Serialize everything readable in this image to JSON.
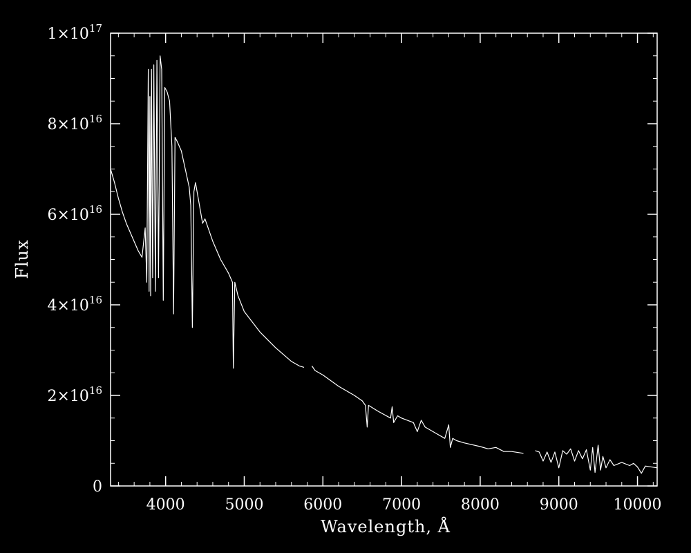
{
  "chart_data": {
    "type": "line",
    "title": "",
    "xlabel": "Wavelength, Å",
    "ylabel": "Flux",
    "xlim": [
      3300,
      10250
    ],
    "ylim": [
      0,
      1e+17
    ],
    "grid": false,
    "legend": "none",
    "background_color": "#000000",
    "line_color": "#ffffff",
    "x_ticks": [
      {
        "value": 4000,
        "label": "4000"
      },
      {
        "value": 5000,
        "label": "5000"
      },
      {
        "value": 6000,
        "label": "6000"
      },
      {
        "value": 7000,
        "label": "7000"
      },
      {
        "value": 8000,
        "label": "8000"
      },
      {
        "value": 9000,
        "label": "9000"
      },
      {
        "value": 10000,
        "label": "10000"
      }
    ],
    "x_minor_step": 200,
    "y_ticks": [
      {
        "value": 0,
        "mant": "0",
        "exp": ""
      },
      {
        "value": 2e+16,
        "mant": "2×10",
        "exp": "16"
      },
      {
        "value": 4e+16,
        "mant": "4×10",
        "exp": "16"
      },
      {
        "value": 6e+16,
        "mant": "6×10",
        "exp": "16"
      },
      {
        "value": 8e+16,
        "mant": "8×10",
        "exp": "16"
      },
      {
        "value": 1e+17,
        "mant": "1×10",
        "exp": "17"
      }
    ],
    "y_minor_step": 5000000000000000.0,
    "series": [
      {
        "segments": [
          {
            "x": [
              3300,
              3350,
              3400,
              3450,
              3500,
              3600,
              3650,
              3700,
              3740,
              3760,
              3780,
              3790,
              3800,
              3810,
              3820,
              3835,
              3850,
              3870,
              3890,
              3910,
              3930,
              3950,
              3970,
              3990,
              4020,
              4050,
              4080,
              4101,
              4120,
              4150,
              4200,
              4250,
              4300,
              4320,
              4340,
              4360,
              4380,
              4420,
              4470,
              4500,
              4600,
              4700,
              4800,
              4850,
              4861,
              4880,
              4920,
              5000,
              5200,
              5400,
              5600,
              5700,
              5760
            ],
            "y": [
              7e+16,
              6.7e+16,
              6.35e+16,
              6.05e+16,
              5.8e+16,
              5.4e+16,
              5.2e+16,
              5.05e+16,
              5.7e+16,
              4.5e+16,
              9.2e+16,
              4.3e+16,
              8.6e+16,
              4.2e+16,
              9.2e+16,
              4.6e+16,
              9.3e+16,
              4.3e+16,
              9.4e+16,
              4.6e+16,
              9.5e+16,
              9.2e+16,
              4.1e+16,
              8.8e+16,
              8.7e+16,
              8.5e+16,
              7.5e+16,
              3.8e+16,
              7.7e+16,
              7.6e+16,
              7.4e+16,
              7e+16,
              6.6e+16,
              6.2e+16,
              3.5e+16,
              6.5e+16,
              6.7e+16,
              6.3e+16,
              5.8e+16,
              5.9e+16,
              5.4e+16,
              5e+16,
              4.7e+16,
              4.5e+16,
              2.6e+16,
              4.5e+16,
              4.2e+16,
              3.85e+16,
              3.4e+16,
              3.05e+16,
              2.75e+16,
              2.65e+16,
              2.62e+16
            ]
          },
          {
            "x": [
              5860,
              5900,
              6000,
              6200,
              6400,
              6500,
              6540,
              6563,
              6580,
              6700,
              6860,
              6880,
              6900,
              6950,
              7000,
              7150,
              7200,
              7250,
              7300,
              7400,
              7550,
              7600,
              7620,
              7650,
              7700,
              7800,
              8000,
              8100,
              8200,
              8300,
              8400,
              8550
            ],
            "y": [
              2.65e+16,
              2.55e+16,
              2.45e+16,
              2.2e+16,
              2e+16,
              1.88e+16,
              1.78e+16,
              1.3e+16,
              1.78e+16,
              1.65e+16,
              1.5e+16,
              1.75e+16,
              1.4e+16,
              1.55e+16,
              1.5e+16,
              1.4e+16,
              1.2e+16,
              1.45e+16,
              1.3e+16,
              1.2e+16,
              1.05e+16,
              1.35e+16,
              8500000000000000.0,
              1.05e+16,
              1e+16,
              9500000000000000.0,
              8700000000000000.0,
              8200000000000000.0,
              8500000000000000.0,
              7600000000000000.0,
              7600000000000000.0,
              7200000000000000.0
            ]
          },
          {
            "x": [
              8700,
              8750,
              8800,
              8850,
              8900,
              8950,
              9000,
              9050,
              9100,
              9150,
              9200,
              9250,
              9300,
              9350,
              9400,
              9430,
              9460,
              9500,
              9530,
              9560,
              9600,
              9650,
              9700,
              9800,
              9900,
              9950,
              10000,
              10050,
              10100,
              10250
            ],
            "y": [
              7800000000000000.0,
              7500000000000000.0,
              5500000000000000.0,
              7500000000000000.0,
              5200000000000000.0,
              7500000000000000.0,
              4000000000000000.0,
              7800000000000000.0,
              7000000000000000.0,
              8200000000000000.0,
              5500000000000000.0,
              7800000000000000.0,
              6000000000000000.0,
              8000000000000000.0,
              3500000000000000.0,
              8500000000000000.0,
              3000000000000000.0,
              9000000000000000.0,
              3500000000000000.0,
              6500000000000000.0,
              4000000000000000.0,
              5800000000000000.0,
              4500000000000000.0,
              5200000000000000.0,
              4500000000000000.0,
              5000000000000000.0,
              4200000000000000.0,
              2800000000000000.0,
              4400000000000000.0,
              4000000000000000.0
            ]
          }
        ]
      }
    ]
  }
}
